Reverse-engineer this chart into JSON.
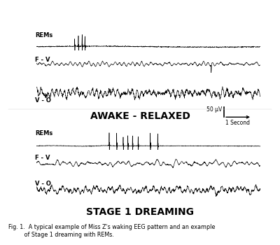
{
  "title_awake": "AWAKE - RELAXED",
  "title_dreaming": "STAGE 1 DREAMING",
  "caption_line1": "Fig. 1.  A typical example of Miss Z's waking EEG pattern and an example",
  "caption_line2": "         of Stage 1 dreaming with REMs.",
  "label_rems": "REMs",
  "label_fv": "F - V",
  "label_vo": "V - O",
  "scale_label_uv": "50 μV",
  "scale_label_sec": "1 Second",
  "bg_color": "#ffffff",
  "line_color": "#000000",
  "seed": 42,
  "n_points": 1200
}
